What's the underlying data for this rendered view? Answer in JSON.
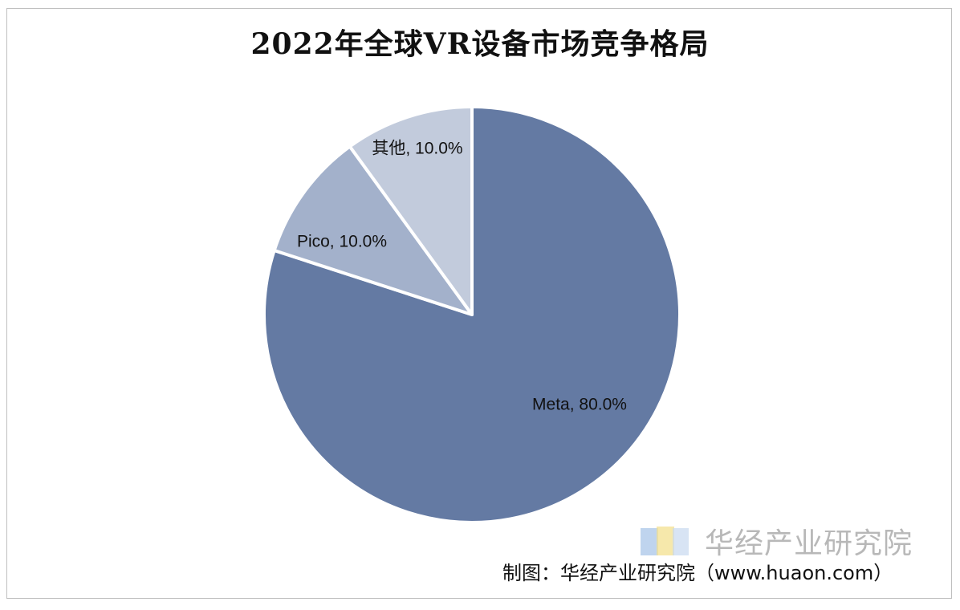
{
  "chart_data": {
    "type": "pie",
    "title": "2022年全球VR设备市场竞争格局",
    "slices": [
      {
        "label": "Meta",
        "value": 80.0,
        "display": "Meta, 80.0%",
        "color": "#647aa3"
      },
      {
        "label": "Pico",
        "value": 10.0,
        "display": "Pico, 10.0%",
        "color": "#a3b1cb"
      },
      {
        "label": "其他",
        "value": 10.0,
        "display": "其他, 10.0%",
        "color": "#c2cbdc"
      }
    ],
    "start_angle_deg": 0,
    "direction": "clockwise",
    "legend": "none"
  },
  "watermark": {
    "text": "华经产业研究院"
  },
  "source": {
    "text": "制图：华经产业研究院（www.huaon.com）"
  }
}
